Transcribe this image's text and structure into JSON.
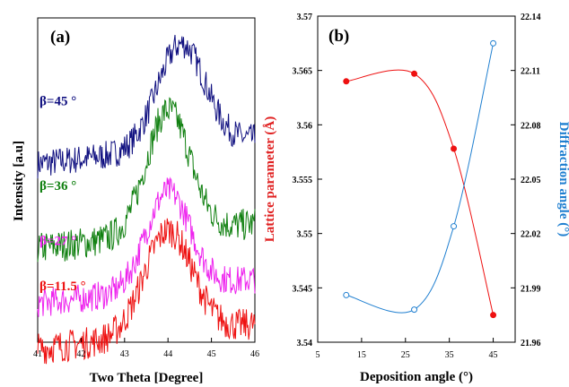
{
  "chart_data": [
    {
      "panel": "(a)",
      "type": "line",
      "xlabel": "Two Theta [Degree]",
      "ylabel": "Intensity [a.u]",
      "xlim": [
        41,
        46
      ],
      "xticks": [
        "41",
        "42",
        "43",
        "44",
        "45",
        "46"
      ],
      "grid": false,
      "series": [
        {
          "name": "β=45 °",
          "color": "#101080",
          "peak_x": 44.3,
          "baseline": 0.55,
          "amplitude": 0.32,
          "width": 0.55,
          "noise": 0.045
        },
        {
          "name": "β=36 °",
          "color": "#108010",
          "peak_x": 44.0,
          "baseline": 0.29,
          "amplitude": 0.38,
          "width": 0.5,
          "noise": 0.05
        },
        {
          "name": "β=27 °",
          "color": "#ee22ee",
          "peak_x": 44.0,
          "baseline": 0.12,
          "amplitude": 0.3,
          "width": 0.5,
          "noise": 0.045
        },
        {
          "name": "β=11.5 °",
          "color": "#ee1111",
          "peak_x": 44.0,
          "baseline": -0.02,
          "amplitude": 0.32,
          "width": 0.55,
          "noise": 0.05
        }
      ]
    },
    {
      "panel": "(b)",
      "type": "line",
      "xlabel": "Deposition angle (°)",
      "ylabel_left": "Lattice parameter (Å)",
      "ylabel_right": "Diffraction angle (°)",
      "xlim": [
        5,
        50
      ],
      "xticks": [
        "5",
        "15",
        "25",
        "35",
        "45"
      ],
      "ylim_left": [
        3.54,
        3.57
      ],
      "yticks_left": [
        "3.54",
        "3.545",
        "3.55",
        "3.555",
        "3.56",
        "3.565",
        "3.57"
      ],
      "ylim_right": [
        21.96,
        22.14
      ],
      "yticks_right": [
        "21.96",
        "21.99",
        "22.02",
        "22.05",
        "22.08",
        "22.11",
        "22.14"
      ],
      "grid": false,
      "series": [
        {
          "name": "Lattice parameter (Å)",
          "axis": "left",
          "color": "#ee1111",
          "marker": "filled-circle",
          "x": [
            11.5,
            27,
            36,
            45
          ],
          "y": [
            3.564,
            3.5647,
            3.5578,
            3.5425
          ]
        },
        {
          "name": "Diffraction angle (°)",
          "axis": "right",
          "color": "#1f7fd0",
          "marker": "open-circle",
          "x": [
            11.5,
            27,
            36,
            45
          ],
          "y": [
            21.986,
            21.978,
            22.024,
            22.125
          ]
        }
      ]
    }
  ]
}
